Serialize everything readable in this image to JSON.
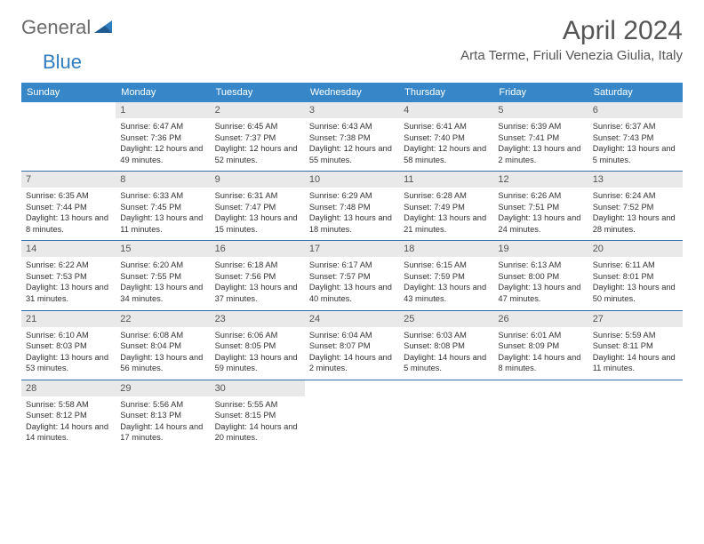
{
  "logo": {
    "word1": "General",
    "word2": "Blue"
  },
  "title": "April 2024",
  "location": "Arta Terme, Friuli Venezia Giulia, Italy",
  "colors": {
    "header_bg": "#3787c8",
    "header_text": "#ffffff",
    "daynum_bg": "#e9e9e9",
    "daynum_text": "#555555",
    "separator": "#2f6fa8",
    "logo_gray": "#6a6a6a",
    "logo_blue": "#2f7cbf",
    "title_color": "#555555"
  },
  "weekdays": [
    "Sunday",
    "Monday",
    "Tuesday",
    "Wednesday",
    "Thursday",
    "Friday",
    "Saturday"
  ],
  "weeks": [
    [
      null,
      {
        "n": "1",
        "sunrise": "6:47 AM",
        "sunset": "7:36 PM",
        "daylight": "12 hours and 49 minutes."
      },
      {
        "n": "2",
        "sunrise": "6:45 AM",
        "sunset": "7:37 PM",
        "daylight": "12 hours and 52 minutes."
      },
      {
        "n": "3",
        "sunrise": "6:43 AM",
        "sunset": "7:38 PM",
        "daylight": "12 hours and 55 minutes."
      },
      {
        "n": "4",
        "sunrise": "6:41 AM",
        "sunset": "7:40 PM",
        "daylight": "12 hours and 58 minutes."
      },
      {
        "n": "5",
        "sunrise": "6:39 AM",
        "sunset": "7:41 PM",
        "daylight": "13 hours and 2 minutes."
      },
      {
        "n": "6",
        "sunrise": "6:37 AM",
        "sunset": "7:43 PM",
        "daylight": "13 hours and 5 minutes."
      }
    ],
    [
      {
        "n": "7",
        "sunrise": "6:35 AM",
        "sunset": "7:44 PM",
        "daylight": "13 hours and 8 minutes."
      },
      {
        "n": "8",
        "sunrise": "6:33 AM",
        "sunset": "7:45 PM",
        "daylight": "13 hours and 11 minutes."
      },
      {
        "n": "9",
        "sunrise": "6:31 AM",
        "sunset": "7:47 PM",
        "daylight": "13 hours and 15 minutes."
      },
      {
        "n": "10",
        "sunrise": "6:29 AM",
        "sunset": "7:48 PM",
        "daylight": "13 hours and 18 minutes."
      },
      {
        "n": "11",
        "sunrise": "6:28 AM",
        "sunset": "7:49 PM",
        "daylight": "13 hours and 21 minutes."
      },
      {
        "n": "12",
        "sunrise": "6:26 AM",
        "sunset": "7:51 PM",
        "daylight": "13 hours and 24 minutes."
      },
      {
        "n": "13",
        "sunrise": "6:24 AM",
        "sunset": "7:52 PM",
        "daylight": "13 hours and 28 minutes."
      }
    ],
    [
      {
        "n": "14",
        "sunrise": "6:22 AM",
        "sunset": "7:53 PM",
        "daylight": "13 hours and 31 minutes."
      },
      {
        "n": "15",
        "sunrise": "6:20 AM",
        "sunset": "7:55 PM",
        "daylight": "13 hours and 34 minutes."
      },
      {
        "n": "16",
        "sunrise": "6:18 AM",
        "sunset": "7:56 PM",
        "daylight": "13 hours and 37 minutes."
      },
      {
        "n": "17",
        "sunrise": "6:17 AM",
        "sunset": "7:57 PM",
        "daylight": "13 hours and 40 minutes."
      },
      {
        "n": "18",
        "sunrise": "6:15 AM",
        "sunset": "7:59 PM",
        "daylight": "13 hours and 43 minutes."
      },
      {
        "n": "19",
        "sunrise": "6:13 AM",
        "sunset": "8:00 PM",
        "daylight": "13 hours and 47 minutes."
      },
      {
        "n": "20",
        "sunrise": "6:11 AM",
        "sunset": "8:01 PM",
        "daylight": "13 hours and 50 minutes."
      }
    ],
    [
      {
        "n": "21",
        "sunrise": "6:10 AM",
        "sunset": "8:03 PM",
        "daylight": "13 hours and 53 minutes."
      },
      {
        "n": "22",
        "sunrise": "6:08 AM",
        "sunset": "8:04 PM",
        "daylight": "13 hours and 56 minutes."
      },
      {
        "n": "23",
        "sunrise": "6:06 AM",
        "sunset": "8:05 PM",
        "daylight": "13 hours and 59 minutes."
      },
      {
        "n": "24",
        "sunrise": "6:04 AM",
        "sunset": "8:07 PM",
        "daylight": "14 hours and 2 minutes."
      },
      {
        "n": "25",
        "sunrise": "6:03 AM",
        "sunset": "8:08 PM",
        "daylight": "14 hours and 5 minutes."
      },
      {
        "n": "26",
        "sunrise": "6:01 AM",
        "sunset": "8:09 PM",
        "daylight": "14 hours and 8 minutes."
      },
      {
        "n": "27",
        "sunrise": "5:59 AM",
        "sunset": "8:11 PM",
        "daylight": "14 hours and 11 minutes."
      }
    ],
    [
      {
        "n": "28",
        "sunrise": "5:58 AM",
        "sunset": "8:12 PM",
        "daylight": "14 hours and 14 minutes."
      },
      {
        "n": "29",
        "sunrise": "5:56 AM",
        "sunset": "8:13 PM",
        "daylight": "14 hours and 17 minutes."
      },
      {
        "n": "30",
        "sunrise": "5:55 AM",
        "sunset": "8:15 PM",
        "daylight": "14 hours and 20 minutes."
      },
      null,
      null,
      null,
      null
    ]
  ]
}
